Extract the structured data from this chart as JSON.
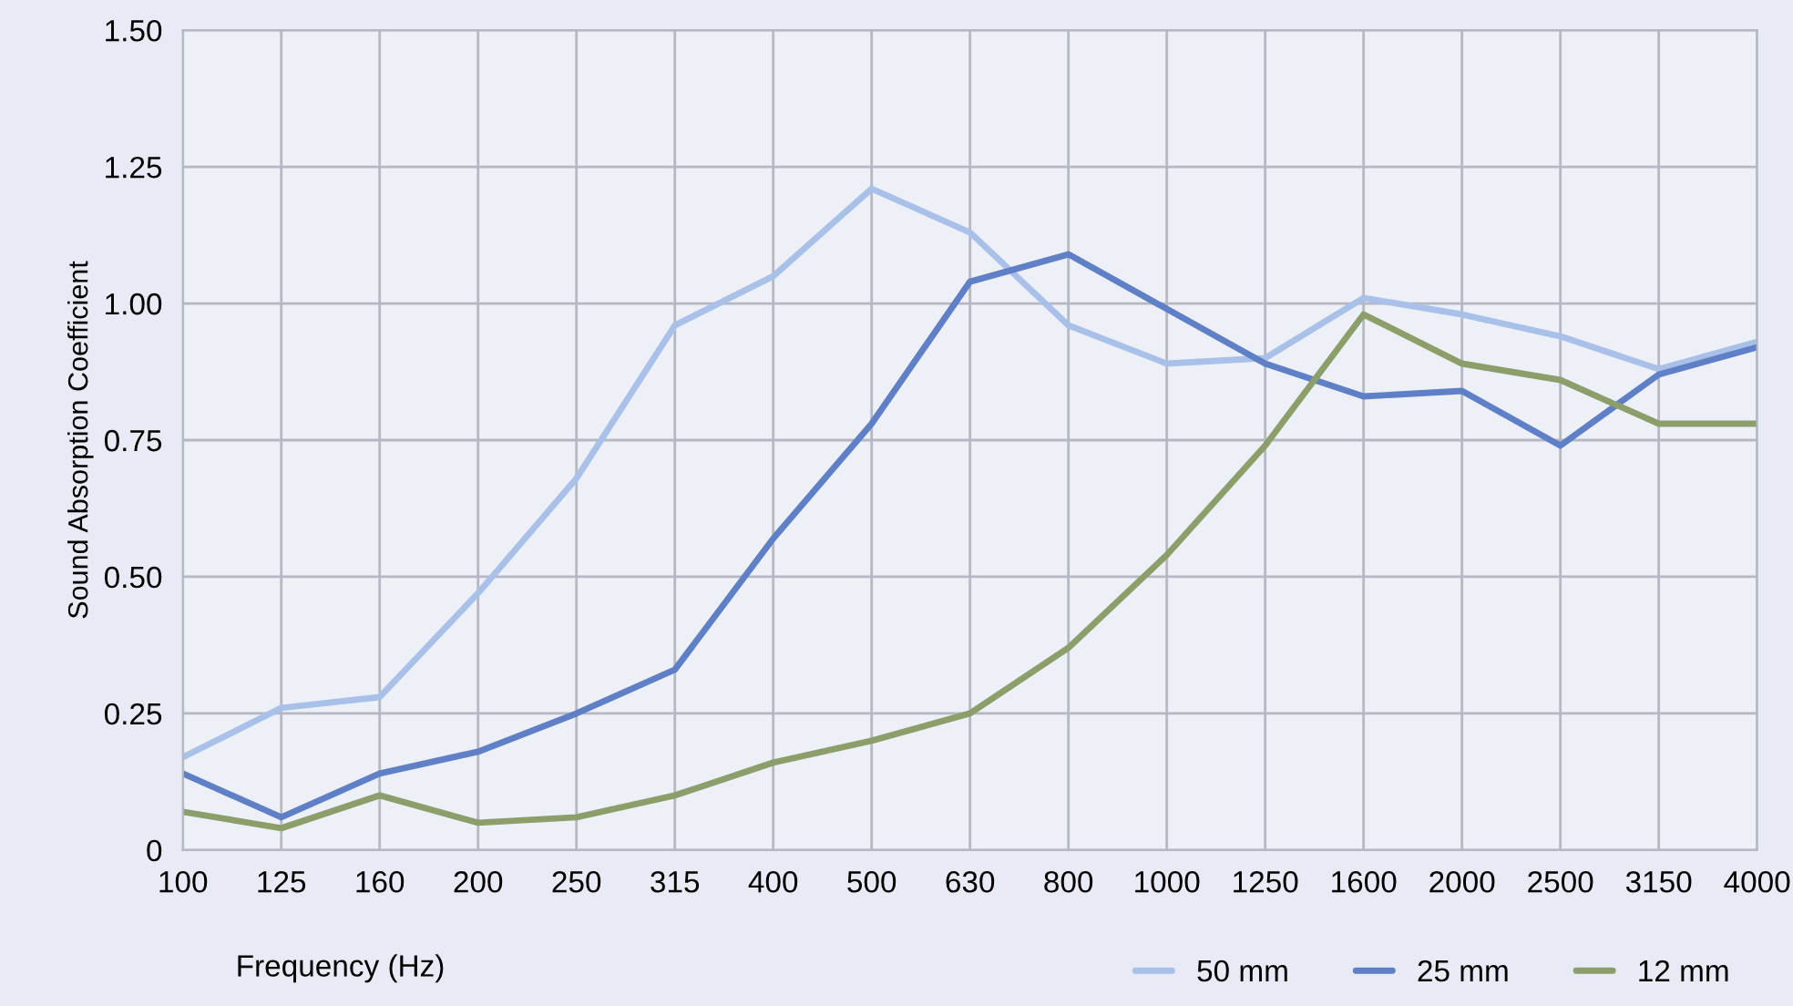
{
  "chart_data": {
    "type": "line",
    "xlabel": "Frequency (Hz)",
    "ylabel": "Sound Absorption Coefficient",
    "categories": [
      "100",
      "125",
      "160",
      "200",
      "250",
      "315",
      "400",
      "500",
      "630",
      "800",
      "1000",
      "1250",
      "1600",
      "2000",
      "2500",
      "3150",
      "4000"
    ],
    "series": [
      {
        "name": "50 mm",
        "color": "#a9c1e8",
        "values": [
          0.17,
          0.26,
          0.28,
          0.47,
          0.68,
          0.96,
          1.05,
          1.21,
          1.13,
          0.96,
          0.89,
          0.9,
          1.01,
          0.98,
          0.94,
          0.88,
          0.93
        ]
      },
      {
        "name": "25 mm",
        "color": "#5f7fc6",
        "values": [
          0.14,
          0.06,
          0.14,
          0.18,
          0.25,
          0.33,
          0.57,
          0.78,
          1.04,
          1.09,
          0.99,
          0.89,
          0.83,
          0.84,
          0.74,
          0.87,
          0.92
        ]
      },
      {
        "name": "12 mm",
        "color": "#8c9f6b",
        "values": [
          0.07,
          0.04,
          0.1,
          0.05,
          0.06,
          0.1,
          0.16,
          0.2,
          0.25,
          0.37,
          0.54,
          0.74,
          0.98,
          0.89,
          0.86,
          0.78,
          0.78
        ]
      }
    ],
    "ylim": [
      0,
      1.5
    ],
    "yticks": [
      {
        "value": 0,
        "label": "0"
      },
      {
        "value": 0.25,
        "label": "0.25"
      },
      {
        "value": 0.5,
        "label": "0.50"
      },
      {
        "value": 0.75,
        "label": "0.75"
      },
      {
        "value": 1.0,
        "label": "1.00"
      },
      {
        "value": 1.25,
        "label": "1.25"
      },
      {
        "value": 1.5,
        "label": "1.50"
      }
    ],
    "grid": true,
    "legend": "bottom right",
    "marker": "none",
    "line_style": "solid"
  }
}
